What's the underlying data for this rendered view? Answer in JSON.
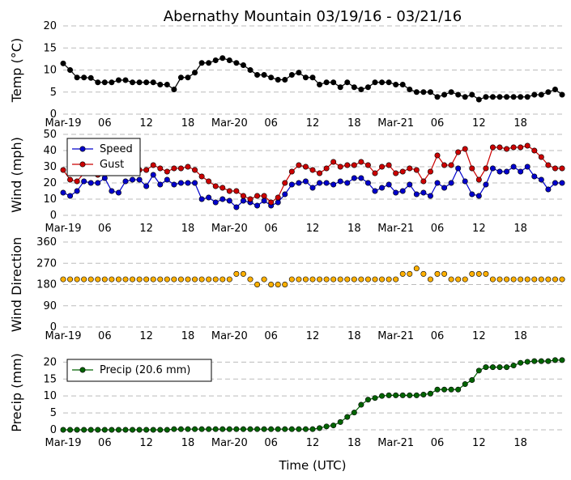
{
  "chart_data": {
    "title": "Abernathy Mountain 03/19/16 - 03/21/16",
    "xlabel": "Time (UTC)",
    "x_ticks": [
      "Mar-19",
      "06",
      "12",
      "18",
      "Mar-20",
      "06",
      "12",
      "18",
      "Mar-21",
      "06",
      "12",
      "18"
    ],
    "x_tick_hours": [
      0,
      6,
      12,
      18,
      24,
      30,
      36,
      42,
      48,
      54,
      60,
      66
    ],
    "x_range_hours": [
      0,
      72
    ],
    "sample_hours": [
      0,
      1,
      2,
      3,
      4,
      5,
      6,
      7,
      8,
      9,
      10,
      11,
      12,
      13,
      14,
      15,
      16,
      17,
      18,
      19,
      20,
      21,
      22,
      23,
      24,
      25,
      26,
      27,
      28,
      29,
      30,
      31,
      32,
      33,
      34,
      35,
      36,
      37,
      38,
      39,
      40,
      41,
      42,
      43,
      44,
      45,
      46,
      47,
      48,
      49,
      50,
      51,
      52,
      53,
      54,
      55,
      56,
      57,
      58,
      59,
      60,
      61,
      62,
      63,
      64,
      65,
      66,
      67,
      68,
      69,
      70,
      71,
      72
    ],
    "panels": [
      {
        "type": "line",
        "ylabel": "Temp (°C)",
        "ylim": [
          0,
          20
        ],
        "yticks": [
          0,
          5,
          10,
          15,
          20
        ],
        "grid": true,
        "legend": null,
        "series": [
          {
            "key": "temp",
            "color": "#000000",
            "values": [
              11.5,
              10,
              8.3,
              8.3,
              8.2,
              7.2,
              7.2,
              7.2,
              7.7,
              7.7,
              7.2,
              7.2,
              7.2,
              7.2,
              6.7,
              6.7,
              5.6,
              8.3,
              8.3,
              9.4,
              11.6,
              11.6,
              12.2,
              12.7,
              12.2,
              11.6,
              11.1,
              10,
              8.9,
              8.9,
              8.3,
              7.8,
              7.8,
              8.9,
              9.4,
              8.3,
              8.3,
              6.7,
              7.2,
              7.2,
              6.1,
              7.2,
              6.1,
              5.6,
              6.1,
              7.2,
              7.2,
              7.2,
              6.7,
              6.7,
              5.6,
              5,
              5,
              5,
              3.9,
              4.4,
              5,
              4.4,
              3.9,
              4.4,
              3.3,
              3.9,
              3.9,
              3.9,
              3.9,
              3.9,
              3.9,
              3.9,
              4.4,
              4.4,
              5,
              5.6,
              4.4
            ]
          }
        ]
      },
      {
        "type": "line",
        "ylabel": "Wind (mph)",
        "ylim": [
          0,
          50
        ],
        "yticks": [
          0,
          10,
          20,
          30,
          40,
          50
        ],
        "grid": true,
        "legend": "top-left",
        "series": [
          {
            "key": "speed",
            "name": "Speed",
            "color": "#0000cc",
            "values": [
              14,
              12,
              15,
              21,
              20,
              20,
              23,
              15,
              14,
              21,
              22,
              22,
              18,
              25,
              19,
              22,
              19,
              20,
              20,
              20,
              10,
              11,
              8,
              10,
              9,
              5,
              9,
              8,
              6,
              9,
              6,
              8,
              13,
              19,
              20,
              21,
              17,
              20,
              20,
              19,
              21,
              20,
              23,
              23,
              20,
              15,
              17,
              19,
              14,
              15,
              19,
              13,
              14,
              12,
              20,
              17,
              20,
              29,
              21,
              13,
              12,
              19,
              29,
              27,
              27,
              30,
              27,
              30,
              24,
              22,
              16,
              20,
              20
            ]
          },
          {
            "key": "gust",
            "name": "Gust",
            "color": "#cc0000",
            "values": [
              28,
              22,
              21,
              26,
              26,
              25,
              30,
              26,
              26,
              30,
              28,
              28,
              28,
              31,
              29,
              27,
              29,
              29,
              30,
              28,
              24,
              21,
              18,
              17,
              15,
              15,
              12,
              10,
              12,
              12,
              8,
              11,
              20,
              27,
              31,
              30,
              28,
              26,
              29,
              33,
              30,
              31,
              31,
              33,
              31,
              26,
              30,
              31,
              26,
              27,
              29,
              28,
              21,
              27,
              37,
              31,
              31,
              39,
              41,
              29,
              22,
              29,
              42,
              42,
              41,
              42,
              42,
              43,
              40,
              36,
              31,
              29,
              29
            ]
          }
        ]
      },
      {
        "type": "scatter",
        "ylabel": "Wind Direction",
        "ylim": [
          0,
          360
        ],
        "yticks": [
          0,
          90,
          180,
          270,
          360
        ],
        "grid": true,
        "legend": null,
        "series": [
          {
            "key": "dir",
            "color": "#ffb000",
            "values": [
              202,
              202,
              202,
              202,
              202,
              202,
              202,
              202,
              202,
              202,
              202,
              202,
              202,
              202,
              202,
              202,
              202,
              202,
              202,
              202,
              202,
              202,
              202,
              202,
              202,
              225,
              225,
              202,
              180,
              202,
              180,
              180,
              180,
              202,
              202,
              202,
              202,
              202,
              202,
              202,
              202,
              202,
              202,
              202,
              202,
              202,
              202,
              202,
              202,
              225,
              225,
              248,
              225,
              202,
              225,
              225,
              202,
              202,
              202,
              225,
              225,
              225,
              202,
              202,
              202,
              202,
              202,
              202,
              202,
              202,
              202,
              202,
              202
            ]
          }
        ]
      },
      {
        "type": "line",
        "ylabel": "Precip (mm)",
        "ylim": [
          0,
          22
        ],
        "yticks": [
          0,
          5,
          10,
          15,
          20
        ],
        "grid": true,
        "legend": "top-left",
        "series": [
          {
            "key": "precip",
            "name": "Precip (20.6 mm)",
            "color": "#006400",
            "values": [
              0,
              0,
              0,
              0,
              0,
              0,
              0,
              0,
              0,
              0,
              0,
              0,
              0,
              0,
              0,
              0,
              0.2,
              0.2,
              0.2,
              0.2,
              0.2,
              0.2,
              0.2,
              0.2,
              0.2,
              0.2,
              0.2,
              0.2,
              0.2,
              0.2,
              0.2,
              0.2,
              0.2,
              0.2,
              0.2,
              0.2,
              0.2,
              0.5,
              1,
              1.3,
              2.3,
              3.8,
              5.1,
              7.4,
              8.9,
              9.4,
              10,
              10.2,
              10.2,
              10.2,
              10.2,
              10.2,
              10.4,
              10.7,
              11.9,
              11.9,
              11.9,
              11.9,
              13.5,
              14.7,
              17.5,
              18.5,
              18.5,
              18.5,
              18.5,
              19,
              19.8,
              20.1,
              20.3,
              20.3,
              20.3,
              20.6,
              20.6
            ]
          }
        ]
      }
    ]
  }
}
